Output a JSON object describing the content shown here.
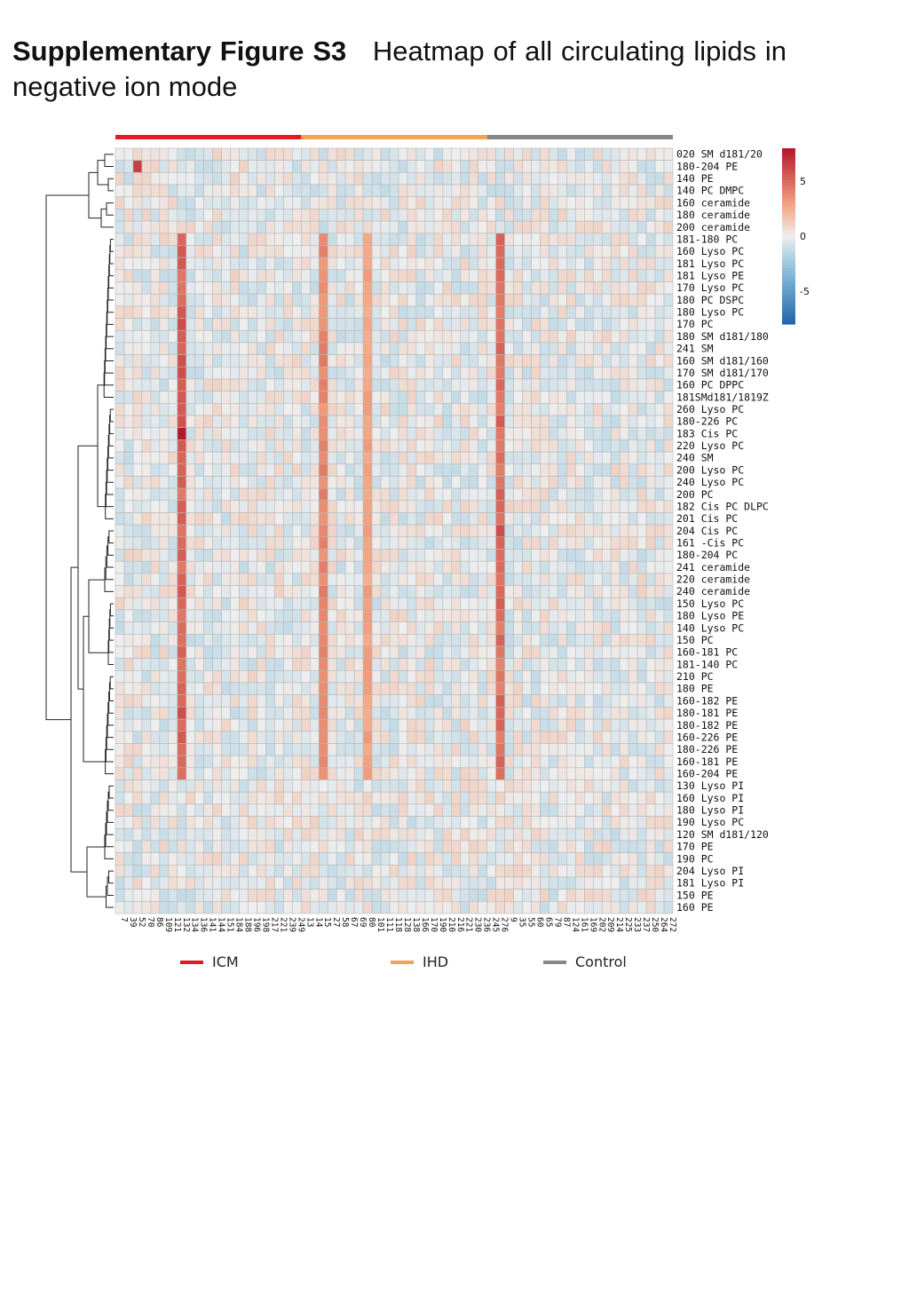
{
  "caption": {
    "label": "Supplementary Figure S3",
    "text": "Heatmap of all circulating lipids in negative ion mode"
  },
  "colors": {
    "ICM": "#e8191c",
    "IHD": "#f7a34b",
    "Control": "#878787",
    "scale_high": "#b2182b",
    "scale_mid": "#eeeeee",
    "scale_low": "#2166ac",
    "grid": "#b8b8b8"
  },
  "legend": [
    {
      "name": "ICM",
      "color": "#e8191c"
    },
    {
      "name": "IHD",
      "color": "#f7a34b"
    },
    {
      "name": "Control",
      "color": "#878787"
    }
  ],
  "chart_data": {
    "type": "heatmap",
    "title": "",
    "color_scale": {
      "min": -8,
      "max": 8,
      "ticks": [
        5,
        0,
        -5
      ]
    },
    "rows": [
      "020 SM d181/20",
      "180-204 PE",
      "140 PE",
      "140 PC DMPC",
      "160 ceramide",
      "180 ceramide",
      "200 ceramide",
      "181-180 PC",
      "160 Lyso PC",
      "181 Lyso PC",
      "181 Lyso PE",
      "170 Lyso PC",
      "180 PC DSPC",
      "180 Lyso PC",
      "170 PC",
      "180 SM d181/180",
      "241 SM",
      "160 SM d181/160",
      "170 SM d181/170",
      "160 PC DPPC",
      "181SMd181/1819Z",
      "260 Lyso PC",
      "180-226 PC",
      "183 Cis PC",
      "220 Lyso PC",
      "240 SM",
      "200 Lyso PC",
      "240 Lyso PC",
      "200 PC",
      "182 Cis PC DLPC",
      "201 Cis PC",
      "204 Cis PC",
      "161 -Cis PC",
      "180-204 PC",
      "241 ceramide",
      "220 ceramide",
      "240 ceramide",
      "150 Lyso PC",
      "180 Lyso PE",
      "140 Lyso PC",
      "150 PC",
      "160-181 PC",
      "181-140 PC",
      "210 PC",
      "180 PE",
      "160-182 PE",
      "180-181 PE",
      "180-182 PE",
      "160-226 PE",
      "180-226 PE",
      "160-181 PE",
      "160-204 PE",
      "130 Lyso PI",
      "160 Lyso PI",
      "180 Lyso PI",
      "190 Lyso PC",
      "120 SM d181/120",
      "170 PE",
      "190 PC",
      "204 Lyso PI",
      "181 Lyso PI",
      "150 PE",
      "160 PE"
    ],
    "columns": [
      "7",
      "39",
      "52",
      "70",
      "86",
      "109",
      "121",
      "132",
      "134",
      "136",
      "141",
      "144",
      "151",
      "184",
      "188",
      "196",
      "198",
      "217",
      "221",
      "239",
      "249",
      "13",
      "14",
      "15",
      "27",
      "58",
      "67",
      "69",
      "80",
      "101",
      "111",
      "118",
      "128",
      "138",
      "166",
      "170",
      "190",
      "210",
      "216",
      "221",
      "230",
      "236",
      "245",
      "276",
      "9",
      "35",
      "55",
      "60",
      "65",
      "79",
      "87",
      "124",
      "161",
      "169",
      "202",
      "209",
      "214",
      "225",
      "233",
      "237",
      "250",
      "264",
      "272"
    ],
    "column_groups": [
      {
        "group": "ICM",
        "count": 21
      },
      {
        "group": "IHD",
        "count": 21
      },
      {
        "group": "Control",
        "count": 21
      }
    ],
    "strong_columns": [
      {
        "column": "132",
        "level": 5.5
      },
      {
        "column": "15",
        "level": 4
      },
      {
        "column": "80",
        "level": 3
      },
      {
        "column": "276",
        "level": 5
      }
    ],
    "strong_cells": [
      {
        "row": "180-204 PE",
        "column": "52",
        "value": 6.5
      },
      {
        "row": "183 Cis PC",
        "column": "132",
        "value": 8
      },
      {
        "row": "204 Cis PC",
        "column": "276",
        "value": 6
      }
    ]
  }
}
